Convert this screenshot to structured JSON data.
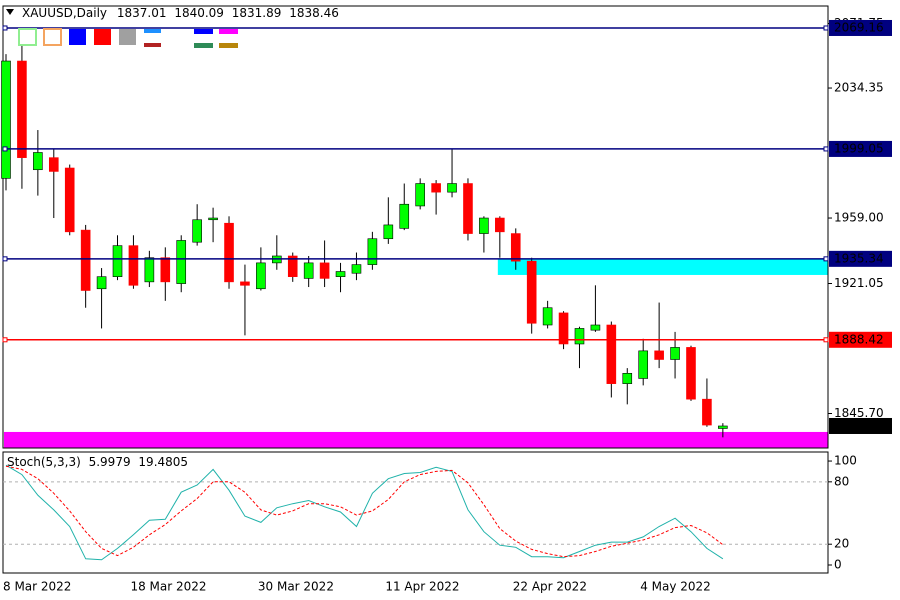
{
  "chart_data": [
    {
      "type": "candlestick",
      "title": "XAUUSD,Daily",
      "categories": [
        "8 Mar 2022",
        null,
        null,
        null,
        null,
        null,
        null,
        null,
        "18 Mar 2022",
        null,
        null,
        null,
        null,
        null,
        null,
        null,
        "30 Mar 2022",
        null,
        null,
        null,
        null,
        null,
        null,
        null,
        "11 Apr 2022",
        null,
        null,
        null,
        null,
        null,
        null,
        null,
        "22 Apr 2022",
        null,
        null,
        null,
        null,
        null,
        null,
        null,
        "4 May 2022",
        null,
        null,
        null,
        null,
        null
      ],
      "open": [
        1982,
        2050,
        1987,
        1994,
        1988,
        1952,
        1918,
        1925,
        1943,
        1922,
        1936,
        1921,
        1945,
        1958,
        1956,
        1922,
        1918,
        1933,
        1937,
        1924,
        1933,
        1925,
        1927,
        1932,
        1947,
        1953,
        1966,
        1979,
        1974,
        1979,
        1950,
        1959,
        1950,
        1934,
        1897,
        1904,
        1886,
        1894,
        1897,
        1863,
        1866,
        1882,
        1877,
        1884,
        1854,
        1837.01
      ],
      "high": [
        2054,
        2060,
        2010,
        1999,
        1990,
        1955,
        1930,
        1949,
        1949,
        1940,
        1942,
        1949,
        1967,
        1965,
        1960,
        1932,
        1942,
        1949,
        1939,
        1937,
        1946,
        1933,
        1939,
        1951,
        1971,
        1979,
        1982,
        1981,
        1999,
        1982,
        1960,
        1960,
        1953,
        1936,
        1911,
        1905,
        1896,
        1920,
        1899,
        1872,
        1889,
        1910,
        1893,
        1885,
        1866,
        1840.09
      ],
      "low": [
        1975,
        1976,
        1972,
        1959,
        1949,
        1907,
        1895,
        1923,
        1918,
        1919,
        1911,
        1916,
        1943,
        1945,
        1918,
        1891,
        1917,
        1929,
        1922,
        1919,
        1919,
        1916,
        1923,
        1929,
        1944,
        1952,
        1964,
        1961,
        1971,
        1946,
        1939,
        1936,
        1929,
        1892,
        1895,
        1883,
        1872,
        1893,
        1855,
        1851,
        1862,
        1872,
        1866,
        1853,
        1838,
        1831.89
      ],
      "close": [
        2050,
        1994,
        1997,
        1986,
        1951,
        1917,
        1925,
        1943,
        1920,
        1936,
        1922,
        1946,
        1958,
        1959,
        1922,
        1920,
        1933,
        1937,
        1925,
        1933,
        1924,
        1928,
        1932,
        1947,
        1955,
        1967,
        1979,
        1974,
        1979,
        1950,
        1959,
        1951,
        1934,
        1898,
        1907,
        1886,
        1895,
        1897,
        1863,
        1869,
        1882,
        1877,
        1884,
        1854,
        1839,
        1838.46
      ],
      "up_color": "#00ff00",
      "down_color": "#ff0000",
      "ylim": [
        1825.7,
        2081.9
      ],
      "yticks": [
        2071.75,
        2034.35,
        {
          "value": 1959,
          "label": "1959.00"
        },
        1921.05,
        {
          "value": 1845.7,
          "label": "1845.70"
        }
      ],
      "levels": [
        {
          "value": 2069.16,
          "color": "#000080"
        },
        {
          "value": 1999.05,
          "color": "#000080"
        },
        {
          "value": 1935.34,
          "color": "#000080"
        },
        {
          "value": 1888.42,
          "color": "#ff0000"
        }
      ],
      "zones": [
        {
          "from": 1926,
          "to": 1935.34,
          "start": 31,
          "color": "#00ffff"
        },
        {
          "from": 1826,
          "to": 1835,
          "start": 0,
          "color": "#ff00ff"
        }
      ]
    },
    {
      "type": "line",
      "title": "Stoch(5,3,3)",
      "series": [
        {
          "color": "#20b2aa",
          "values": [
            96,
            87,
            67,
            53,
            37,
            6,
            5,
            16,
            29,
            43,
            44,
            70,
            77,
            92,
            72,
            47,
            41,
            55,
            59,
            62,
            56,
            51,
            37,
            69,
            83,
            88,
            89,
            94,
            90,
            53,
            32,
            19,
            17,
            8,
            8,
            7,
            13,
            19,
            22,
            22,
            27,
            37,
            45,
            32,
            16,
            5.9979
          ]
        },
        {
          "color": "#ff0000",
          "dash": true,
          "values": [
            95,
            92,
            83,
            69,
            52,
            32,
            16,
            9,
            17,
            29,
            39,
            52,
            64,
            80,
            80,
            70,
            53,
            48,
            52,
            59,
            59,
            56,
            48,
            52,
            63,
            80,
            87,
            90,
            91,
            79,
            58,
            35,
            23,
            15,
            11,
            8,
            9,
            13,
            18,
            21,
            24,
            29,
            36,
            38,
            31,
            19.4805
          ]
        }
      ],
      "ylim": [
        -7.7,
        108.7
      ],
      "yticks": [
        0,
        20,
        80,
        100
      ],
      "levels": [
        20,
        80
      ]
    }
  ]
}
